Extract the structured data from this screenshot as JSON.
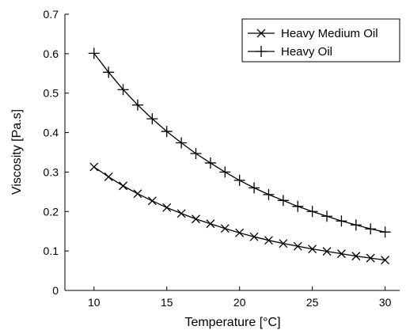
{
  "chart_data": {
    "type": "line",
    "title": "",
    "xlabel": "Temperature [°C]",
    "ylabel": "Viscosity [Pa.s]",
    "xlim": [
      8,
      31
    ],
    "ylim": [
      0,
      0.7
    ],
    "xticks": [
      10,
      15,
      20,
      25,
      30
    ],
    "yticks": [
      0,
      0.1,
      0.2,
      0.3,
      0.4,
      0.5,
      0.6,
      0.7
    ],
    "legend_position": "top-right",
    "grid": false,
    "x": [
      10,
      11,
      12,
      13,
      14,
      15,
      16,
      17,
      18,
      19,
      20,
      21,
      22,
      23,
      24,
      25,
      26,
      27,
      28,
      29,
      30
    ],
    "series": [
      {
        "name": "Heavy Medium Oil",
        "marker": "x",
        "color": "#000000",
        "values": [
          0.313,
          0.288,
          0.265,
          0.245,
          0.227,
          0.21,
          0.195,
          0.181,
          0.169,
          0.157,
          0.146,
          0.136,
          0.127,
          0.119,
          0.112,
          0.105,
          0.099,
          0.093,
          0.087,
          0.082,
          0.077
        ]
      },
      {
        "name": "Heavy Oil",
        "marker": "+",
        "color": "#000000",
        "values": [
          0.601,
          0.553,
          0.509,
          0.47,
          0.435,
          0.403,
          0.374,
          0.347,
          0.323,
          0.3,
          0.279,
          0.26,
          0.243,
          0.228,
          0.213,
          0.2,
          0.188,
          0.176,
          0.166,
          0.156,
          0.148
        ]
      }
    ]
  }
}
